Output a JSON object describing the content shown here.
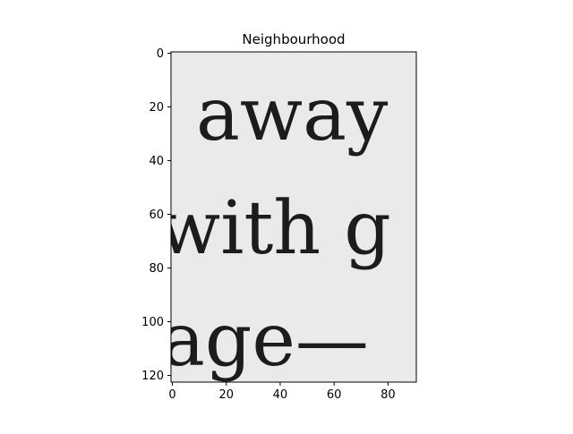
{
  "chart_data": {
    "type": "image",
    "title": "Neighbourhood",
    "xlim": [
      -0.5,
      90.5
    ],
    "ylim": [
      122.5,
      -0.5
    ],
    "x_ticks": [
      0,
      20,
      40,
      60,
      80
    ],
    "y_ticks": [
      0,
      20,
      40,
      60,
      80,
      100,
      120
    ],
    "colormap": "gray",
    "grid": false,
    "image_text_lines": [
      "away",
      "with g",
      "age—"
    ],
    "colors": {
      "background": "#ececec",
      "ink": "#1c1c1c",
      "axes": "#000000"
    }
  }
}
